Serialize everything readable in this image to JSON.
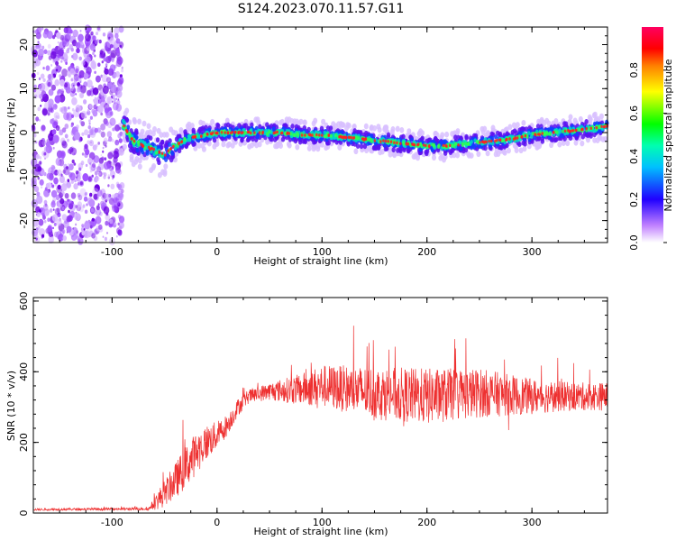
{
  "title": "S124.2023.070.11.57.G11",
  "chart_data": [
    {
      "type": "heatmap",
      "xlabel": "Height of straight line (km)",
      "ylabel": "Frequency (Hz)",
      "xlim": [
        -175,
        372
      ],
      "ylim": [
        -25,
        24
      ],
      "x_ticks": [
        -100,
        0,
        100,
        200,
        300
      ],
      "y_ticks": [
        -20,
        -10,
        0,
        10,
        20
      ],
      "colorbar": {
        "label": "Normalized spectral amplitude",
        "range": [
          0,
          1
        ],
        "ticks": [
          0.0,
          0.2,
          0.4,
          0.6,
          0.8
        ]
      },
      "ridge": {
        "x": [
          -90,
          -80,
          -60,
          -50,
          -40,
          -30,
          -20,
          0,
          20,
          40,
          60,
          80,
          100,
          120,
          140,
          160,
          180,
          200,
          220,
          240,
          260,
          280,
          300,
          320,
          340,
          360,
          372
        ],
        "y": [
          2,
          -2,
          -4,
          -5,
          -3,
          -1.5,
          -1,
          0,
          0,
          0,
          0,
          -0.5,
          -0.5,
          -1,
          -1.5,
          -2,
          -2.5,
          -3,
          -3,
          -2.5,
          -2,
          -1.5,
          -0.5,
          0,
          0.5,
          1,
          1.5
        ]
      },
      "noise_region_x": [
        -175,
        -90
      ]
    },
    {
      "type": "line",
      "xlabel": "Height of straight line (km)",
      "ylabel": "SNR (10 * v/v)",
      "xlim": [
        -175,
        372
      ],
      "ylim": [
        0,
        610
      ],
      "x_ticks": [
        -100,
        0,
        100,
        200,
        300
      ],
      "y_ticks": [
        0,
        200,
        400,
        600
      ],
      "color": "#ee3030",
      "envelope": {
        "x": [
          -175,
          -65,
          -55,
          -40,
          -30,
          -20,
          -10,
          0,
          10,
          20,
          30,
          50,
          80,
          100,
          150,
          200,
          250,
          300,
          340,
          372
        ],
        "mean": [
          10,
          12,
          40,
          90,
          130,
          170,
          200,
          220,
          250,
          300,
          330,
          345,
          350,
          360,
          340,
          330,
          340,
          330,
          330,
          330
        ],
        "spread": [
          3,
          4,
          30,
          50,
          60,
          60,
          50,
          40,
          30,
          25,
          20,
          25,
          45,
          60,
          75,
          80,
          70,
          50,
          40,
          40
        ]
      }
    }
  ]
}
